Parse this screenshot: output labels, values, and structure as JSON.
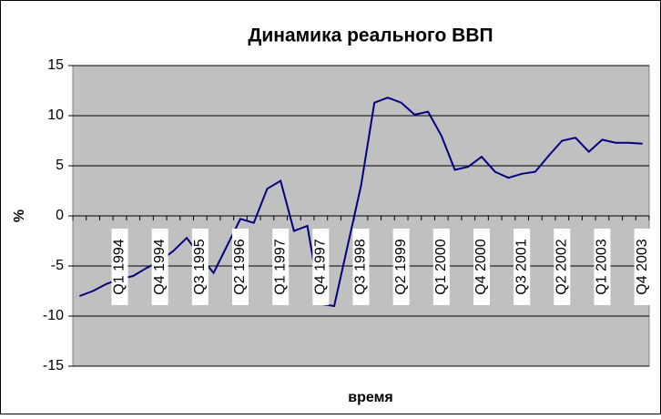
{
  "chart_data": {
    "type": "line",
    "title": "Динамика реального ВВП",
    "xlabel": "время",
    "ylabel": "%",
    "categories": [
      null,
      null,
      null,
      "Q1 1994",
      null,
      null,
      "Q4 1994",
      null,
      null,
      "Q3 1995",
      null,
      null,
      "Q2 1996",
      null,
      null,
      "Q1 1997",
      null,
      null,
      "Q4 1997",
      null,
      null,
      "Q3 1998",
      null,
      null,
      "Q2 1999",
      null,
      null,
      "Q1 2000",
      null,
      null,
      "Q4 2000",
      null,
      null,
      "Q3 2001",
      null,
      null,
      "Q2 2002",
      null,
      null,
      "Q1 2003",
      null,
      null,
      "Q4 2003"
    ],
    "series": [
      {
        "color": "#000080",
        "values": [
          -8,
          -7.5,
          -6.8,
          -6.3,
          -6,
          -5.2,
          -4.5,
          -3.5,
          -2.2,
          -4,
          -5.7,
          -3,
          -0.3,
          -0.7,
          2.7,
          3.5,
          -1.5,
          -1,
          -8.8,
          -9,
          -3,
          3,
          11.3,
          11.8,
          11.3,
          10.1,
          10.4,
          8,
          4.6,
          4.9,
          5.9,
          4.4,
          3.8,
          4.2,
          4.4,
          6,
          7.5,
          7.8,
          6.4,
          7.6,
          7.3,
          7.3,
          7.2
        ]
      }
    ],
    "ylim": [
      -15,
      15
    ],
    "yticks": [
      -15,
      -10,
      -5,
      0,
      5,
      10,
      15
    ],
    "grid": true,
    "background": "#c0c0c0"
  }
}
